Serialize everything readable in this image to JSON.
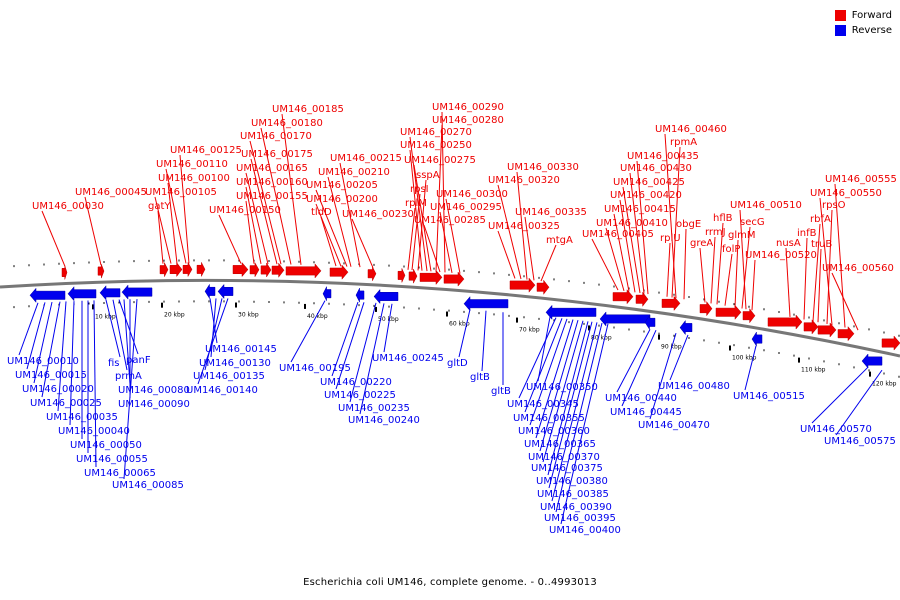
{
  "legend": {
    "forward_label": "Forward",
    "reverse_label": "Reverse",
    "forward_color": "#ee0000",
    "reverse_color": "#0000ee"
  },
  "caption": "Escherichia coli UM146, complete genome. - 0..4993013",
  "chart_data": {
    "type": "genome-map",
    "visible_range_kbp": [
      0,
      124
    ],
    "ticks": [
      "10 kbp",
      "20 kbp",
      "30 kbp",
      "40 kbp",
      "50 kbp",
      "60 kbp",
      "70 kbp",
      "80 kbp",
      "90 kbp",
      "100 kbp",
      "110 kbp",
      "120 kbp"
    ],
    "forward_labels": [
      "UM146_00030",
      "UM146_00045",
      "gatY",
      "UM146_00105",
      "UM146_00100",
      "UM146_00110",
      "UM146_00125",
      "UM146_00150",
      "UM146_00155",
      "UM146_00160",
      "UM146_00165",
      "UM146_00175",
      "UM146_00170",
      "UM146_00180",
      "UM146_00185",
      "tldD",
      "UM146_00200",
      "UM146_00205",
      "UM146_00210",
      "UM146_00215",
      "UM146_00230",
      "rplM",
      "rpsI",
      "sspA",
      "UM146_00250",
      "UM146_00270",
      "UM146_00275",
      "UM146_00280",
      "UM146_00285",
      "UM146_00290",
      "UM146_00295",
      "UM146_00300",
      "UM146_00325",
      "UM146_00320",
      "UM146_00330",
      "UM146_00335",
      "mtgA",
      "UM146_00405",
      "UM146_00410",
      "UM146_00415",
      "UM146_00420",
      "UM146_00425",
      "UM146_00430",
      "UM146_00435",
      "rplU",
      "rpmA",
      "UM146_00460",
      "obgE",
      "greA",
      "rrmJ",
      "hflB",
      "folP",
      "glmM",
      "secG",
      "UM146_00510",
      "UM146_00520",
      "nusA",
      "infB",
      "rbfA",
      "truB",
      "rpsO",
      "UM146_00550",
      "UM146_00555",
      "UM146_00560"
    ],
    "reverse_labels": [
      "UM146_00010",
      "UM146_00015",
      "UM146_00020",
      "UM146_00025",
      "UM146_00035",
      "UM146_00040",
      "UM146_00050",
      "UM146_00055",
      "UM146_00065",
      "fis",
      "prmA",
      "panF",
      "UM146_00080",
      "UM146_00090",
      "UM146_00085",
      "UM146_00145",
      "UM146_00130",
      "UM146_00135",
      "UM146_00140",
      "UM146_00195",
      "UM146_00220",
      "UM146_00225",
      "UM146_00235",
      "UM146_00240",
      "UM146_00245",
      "gltD",
      "gltB",
      "gltB",
      "UM146_00350",
      "UM146_00345",
      "UM146_00355",
      "UM146_00360",
      "UM146_00365",
      "UM146_00370",
      "UM146_00375",
      "UM146_00380",
      "UM146_00385",
      "UM146_00390",
      "UM146_00395",
      "UM146_00400",
      "UM146_00440",
      "UM146_00445",
      "UM146_00470",
      "UM146_00480",
      "UM146_00515",
      "UM146_00570",
      "UM146_00575"
    ]
  }
}
